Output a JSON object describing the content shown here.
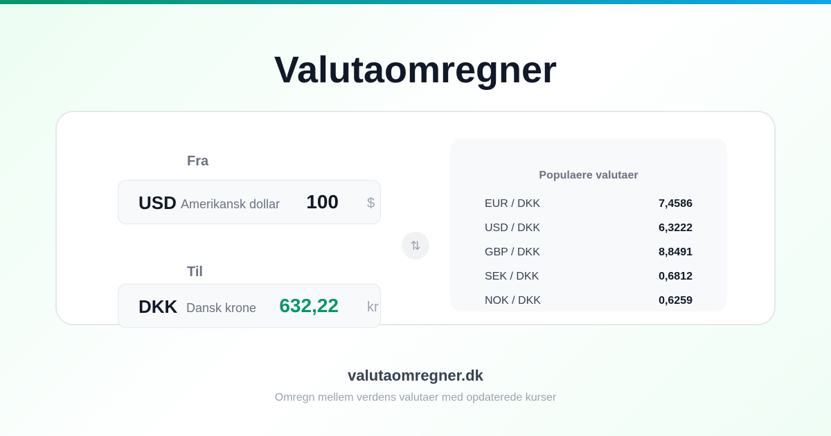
{
  "title": "Valutaomregner",
  "converter": {
    "from": {
      "label": "Fra",
      "code": "USD",
      "name": "Amerikansk dollar",
      "amount": "100",
      "symbol": "$"
    },
    "to": {
      "label": "Til",
      "code": "DKK",
      "name": "Dansk krone",
      "amount": "632,22",
      "symbol": "kr"
    },
    "swap_icon": "swap-vertical-arrows",
    "swap_glyph": "⇅"
  },
  "popular": {
    "title": "Populaere valutaer",
    "rows": [
      {
        "pair": "EUR / DKK",
        "rate": "7,4586"
      },
      {
        "pair": "USD / DKK",
        "rate": "6,3222"
      },
      {
        "pair": "GBP / DKK",
        "rate": "8,8491"
      },
      {
        "pair": "SEK / DKK",
        "rate": "0,6812"
      },
      {
        "pair": "NOK / DKK",
        "rate": "0,6259"
      }
    ]
  },
  "footer": {
    "site": "valutaomregner.dk",
    "tagline": "Omregn mellem verdens valutaer med opdaterede kurser"
  },
  "colors": {
    "accent": "#059669",
    "accent2": "#0ea5e9",
    "result": "#059669"
  }
}
